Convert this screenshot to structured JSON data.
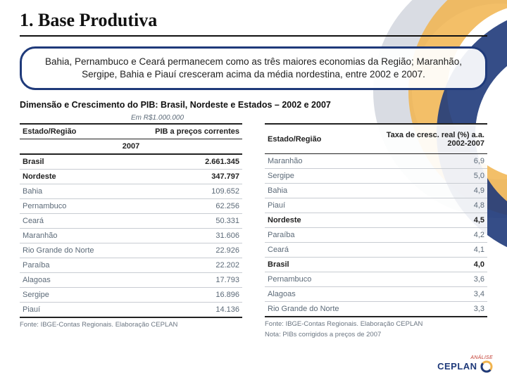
{
  "title": "1. Base Produtiva",
  "callout": "Bahia, Pernambuco e Ceará permanecem como as três maiores economias da Região; Maranhão, Sergipe, Bahia e Piauí cresceram acima da média nordestina, entre 2002 e 2007.",
  "subtitle": "Dimensão e Crescimento do PIB: Brasil, Nordeste e Estados – 2002 e 2007",
  "unit_label": "Em R$1.000.000",
  "table_left": {
    "headers": [
      "Estado/Região",
      "PIB a preços correntes"
    ],
    "subhead": "2007",
    "rows": [
      {
        "label": "Brasil",
        "value": "2.661.345",
        "bold": true
      },
      {
        "label": "Nordeste",
        "value": "347.797",
        "bold": true
      },
      {
        "label": "Bahia",
        "value": "109.652",
        "bold": false
      },
      {
        "label": "Pernambuco",
        "value": "62.256",
        "bold": false
      },
      {
        "label": "Ceará",
        "value": "50.331",
        "bold": false
      },
      {
        "label": "Maranhão",
        "value": "31.606",
        "bold": false
      },
      {
        "label": "Rio Grande do Norte",
        "value": "22.926",
        "bold": false
      },
      {
        "label": "Paraíba",
        "value": "22.202",
        "bold": false
      },
      {
        "label": "Alagoas",
        "value": "17.793",
        "bold": false
      },
      {
        "label": "Sergipe",
        "value": "16.896",
        "bold": false
      },
      {
        "label": "Piauí",
        "value": "14.136",
        "bold": false
      }
    ],
    "footnote": "Fonte: IBGE-Contas Regionais. Elaboração CEPLAN"
  },
  "table_right": {
    "headers": [
      "Estado/Região",
      "Taxa de cresc. real (%) a.a. 2002-2007"
    ],
    "rows": [
      {
        "label": "Maranhão",
        "value": "6,9",
        "bold": false
      },
      {
        "label": "Sergipe",
        "value": "5,0",
        "bold": false
      },
      {
        "label": "Bahia",
        "value": "4,9",
        "bold": false
      },
      {
        "label": "Piauí",
        "value": "4,8",
        "bold": false
      },
      {
        "label": "Nordeste",
        "value": "4,5",
        "bold": true
      },
      {
        "label": "Paraíba",
        "value": "4,2",
        "bold": false
      },
      {
        "label": "Ceará",
        "value": "4,1",
        "bold": false
      },
      {
        "label": "Brasil",
        "value": "4,0",
        "bold": true
      },
      {
        "label": "Pernambuco",
        "value": "3,6",
        "bold": false
      },
      {
        "label": "Alagoas",
        "value": "3,4",
        "bold": false
      },
      {
        "label": "Rio Grande do Norte",
        "value": "3,3",
        "bold": false
      }
    ],
    "footnote1": "Fonte: IBGE-Contas Regionais. Elaboração CEPLAN",
    "footnote2": "Nota: PIBs corrigidos a preços de 2007"
  },
  "logo": {
    "analise": "ANÁLISE",
    "brand": "CEPLAN"
  },
  "colors": {
    "navy": "#1f3a7a",
    "orange": "#f1b44e",
    "grey": "#d9dce3",
    "text_muted": "#5c6a78"
  }
}
